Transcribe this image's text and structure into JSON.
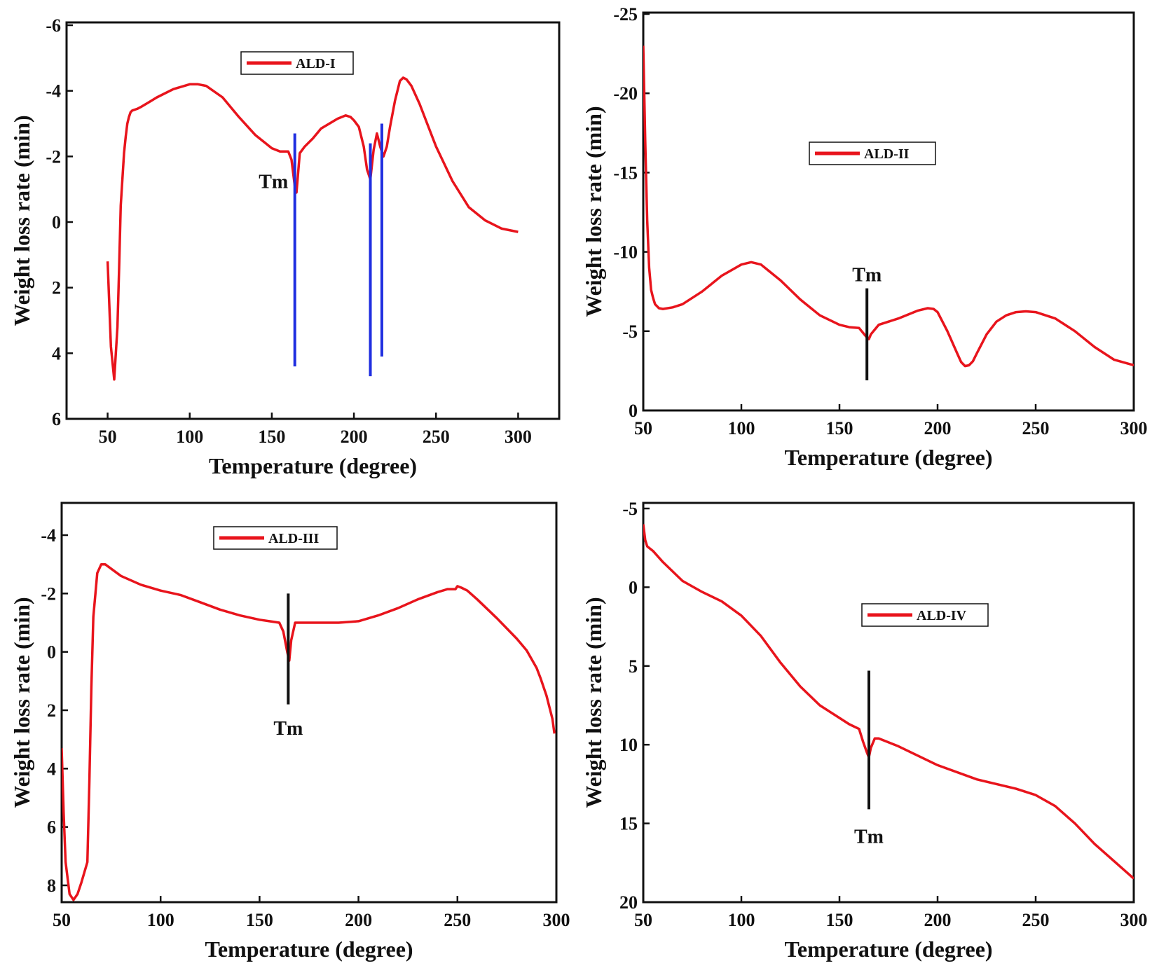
{
  "chart_data": [
    {
      "type": "line",
      "legend": "ALD-I",
      "xlabel": "Temperature (degree)",
      "ylabel": "Weight loss rate (min)",
      "xlim": [
        25,
        325
      ],
      "ylim": [
        -6,
        6
      ],
      "y_inverted": true,
      "xticks": [
        50,
        100,
        150,
        200,
        250,
        300
      ],
      "yticks": [
        -6,
        -4,
        -2,
        0,
        2,
        4,
        6
      ],
      "colors": {
        "series": "#e8141c",
        "marker": "#1f2ee0"
      },
      "series": [
        {
          "x": [
            50,
            52,
            54,
            56,
            57,
            58,
            60,
            61,
            62,
            63,
            64,
            65,
            68,
            70,
            75,
            80,
            90,
            100,
            105,
            110,
            120,
            130,
            140,
            150,
            155,
            160,
            162,
            164,
            165,
            167,
            170,
            175,
            180,
            190,
            195,
            198,
            200,
            203,
            206,
            208,
            210,
            212,
            214,
            216,
            218,
            220,
            222,
            225,
            228,
            230,
            232,
            235,
            240,
            245,
            250,
            260,
            270,
            280,
            290,
            300
          ],
          "y": [
            1.2,
            3.8,
            4.8,
            3.2,
            1.4,
            -0.5,
            -2.1,
            -2.6,
            -3.0,
            -3.2,
            -3.35,
            -3.4,
            -3.45,
            -3.5,
            -3.65,
            -3.8,
            -4.05,
            -4.2,
            -4.2,
            -4.15,
            -3.8,
            -3.2,
            -2.65,
            -2.25,
            -2.15,
            -2.15,
            -1.9,
            -1.1,
            -0.9,
            -2.1,
            -2.3,
            -2.55,
            -2.85,
            -3.15,
            -3.25,
            -3.2,
            -3.1,
            -2.9,
            -2.3,
            -1.6,
            -1.3,
            -2.2,
            -2.7,
            -2.3,
            -2.0,
            -2.3,
            -2.9,
            -3.7,
            -4.3,
            -4.4,
            -4.35,
            -4.15,
            -3.6,
            -2.95,
            -2.3,
            -1.25,
            -0.45,
            -0.05,
            0.2,
            0.3
          ]
        }
      ],
      "markers": [
        {
          "x": 164,
          "y1": -2.7,
          "y2": 4.4
        },
        {
          "x": 210,
          "y1": -2.4,
          "y2": 4.7
        },
        {
          "x": 217,
          "y1": -3.0,
          "y2": 4.1
        }
      ],
      "annotation": {
        "text": "Tm",
        "x": 151,
        "y": -1.25
      }
    },
    {
      "type": "line",
      "legend": "ALD-II",
      "xlabel": "Temperature (degree)",
      "ylabel": "Weight loss rate (min)",
      "xlim": [
        50,
        300
      ],
      "ylim": [
        -25,
        0
      ],
      "y_inverted": false,
      "xticks": [
        50,
        100,
        150,
        200,
        250,
        300
      ],
      "yticks": [
        -25,
        -20,
        -15,
        -10,
        -5,
        0
      ],
      "colors": {
        "series": "#e8141c",
        "marker": "#111111"
      },
      "series": [
        {
          "x": [
            50,
            51,
            52,
            53,
            54,
            55,
            56,
            58,
            60,
            65,
            70,
            80,
            90,
            100,
            105,
            110,
            120,
            130,
            140,
            150,
            155,
            160,
            162,
            164,
            165,
            166,
            168,
            170,
            180,
            190,
            195,
            198,
            200,
            205,
            210,
            212,
            214,
            216,
            218,
            220,
            225,
            230,
            235,
            240,
            245,
            250,
            260,
            270,
            280,
            290,
            300
          ],
          "y": [
            -23,
            -17,
            -12,
            -9,
            -7.6,
            -7.1,
            -6.7,
            -6.45,
            -6.4,
            -6.5,
            -6.7,
            -7.5,
            -8.5,
            -9.2,
            -9.35,
            -9.2,
            -8.2,
            -7,
            -6,
            -5.4,
            -5.25,
            -5.2,
            -4.9,
            -4.6,
            -4.5,
            -4.8,
            -5.1,
            -5.4,
            -5.8,
            -6.3,
            -6.45,
            -6.4,
            -6.2,
            -5,
            -3.6,
            -3.05,
            -2.8,
            -2.85,
            -3.1,
            -3.6,
            -4.8,
            -5.6,
            -6.0,
            -6.2,
            -6.25,
            -6.2,
            -5.8,
            -5.0,
            -4.0,
            -3.2,
            -2.85
          ]
        }
      ],
      "markers": [
        {
          "x": 164,
          "y1": -7.7,
          "y2": -1.9
        }
      ],
      "annotation": {
        "text": "Tm",
        "x": 164,
        "y": -8.6
      }
    },
    {
      "type": "line",
      "legend": "ALD-III",
      "xlabel": "Temperature (degree)",
      "ylabel": "Weight loss rate (min)",
      "xlim": [
        50,
        300
      ],
      "ylim": [
        -5,
        8.5
      ],
      "y_inverted": true,
      "xticks": [
        50,
        100,
        150,
        200,
        250,
        300
      ],
      "yticks": [
        -4,
        -2,
        0,
        2,
        4,
        6,
        8
      ],
      "colors": {
        "series": "#e8141c",
        "marker": "#111111"
      },
      "series": [
        {
          "x": [
            50,
            51,
            52,
            54,
            56,
            58,
            60,
            63,
            64,
            65,
            66,
            68,
            70,
            72,
            75,
            80,
            90,
            100,
            110,
            120,
            130,
            140,
            150,
            155,
            160,
            162,
            164,
            165,
            166,
            168,
            170,
            180,
            190,
            200,
            210,
            220,
            230,
            240,
            245,
            249,
            250,
            252,
            255,
            260,
            270,
            280,
            285,
            290,
            292,
            295,
            298,
            299
          ],
          "y": [
            3.3,
            5.5,
            7.2,
            8.3,
            8.5,
            8.3,
            7.9,
            7.2,
            4.5,
            1.2,
            -1.2,
            -2.7,
            -3.0,
            -3.0,
            -2.85,
            -2.6,
            -2.3,
            -2.1,
            -1.95,
            -1.7,
            -1.45,
            -1.25,
            -1.1,
            -1.05,
            -1.0,
            -0.7,
            0.0,
            0.3,
            -0.4,
            -1.0,
            -1.0,
            -1.0,
            -1.0,
            -1.05,
            -1.25,
            -1.5,
            -1.8,
            -2.05,
            -2.15,
            -2.15,
            -2.25,
            -2.2,
            -2.1,
            -1.8,
            -1.15,
            -0.45,
            -0.05,
            0.55,
            0.9,
            1.5,
            2.3,
            2.8
          ]
        }
      ],
      "markers": [
        {
          "x": 164.5,
          "y1": -2.0,
          "y2": 1.8
        }
      ],
      "annotation": {
        "text": "Tm",
        "x": 164.5,
        "y": 2.6
      }
    },
    {
      "type": "line",
      "legend": "ALD-IV",
      "xlabel": "Temperature (degree)",
      "ylabel": "Weight loss rate (min)",
      "xlim": [
        50,
        300
      ],
      "ylim": [
        -5,
        20
      ],
      "y_inverted": true,
      "xticks": [
        50,
        100,
        150,
        200,
        250,
        300
      ],
      "yticks": [
        -5,
        0,
        5,
        10,
        15,
        20
      ],
      "colors": {
        "series": "#e8141c",
        "marker": "#111111"
      },
      "series": [
        {
          "x": [
            50,
            51,
            52,
            55,
            60,
            70,
            80,
            90,
            100,
            110,
            120,
            130,
            140,
            150,
            155,
            160,
            162,
            164,
            165,
            166,
            168,
            170,
            180,
            200,
            220,
            240,
            250,
            260,
            270,
            280,
            290,
            300
          ],
          "y": [
            -4.0,
            -3.0,
            -2.6,
            -2.3,
            -1.6,
            -0.4,
            0.3,
            0.9,
            1.8,
            3.1,
            4.8,
            6.3,
            7.5,
            8.3,
            8.7,
            9.0,
            9.8,
            10.5,
            10.8,
            10.2,
            9.6,
            9.6,
            10.1,
            11.3,
            12.2,
            12.8,
            13.2,
            13.9,
            15.0,
            16.3,
            17.4,
            18.5
          ]
        }
      ],
      "markers": [
        {
          "x": 165,
          "y1": 5.3,
          "y2": 14.1
        }
      ],
      "annotation": {
        "text": "Tm",
        "x": 165,
        "y": 15.8
      }
    }
  ]
}
